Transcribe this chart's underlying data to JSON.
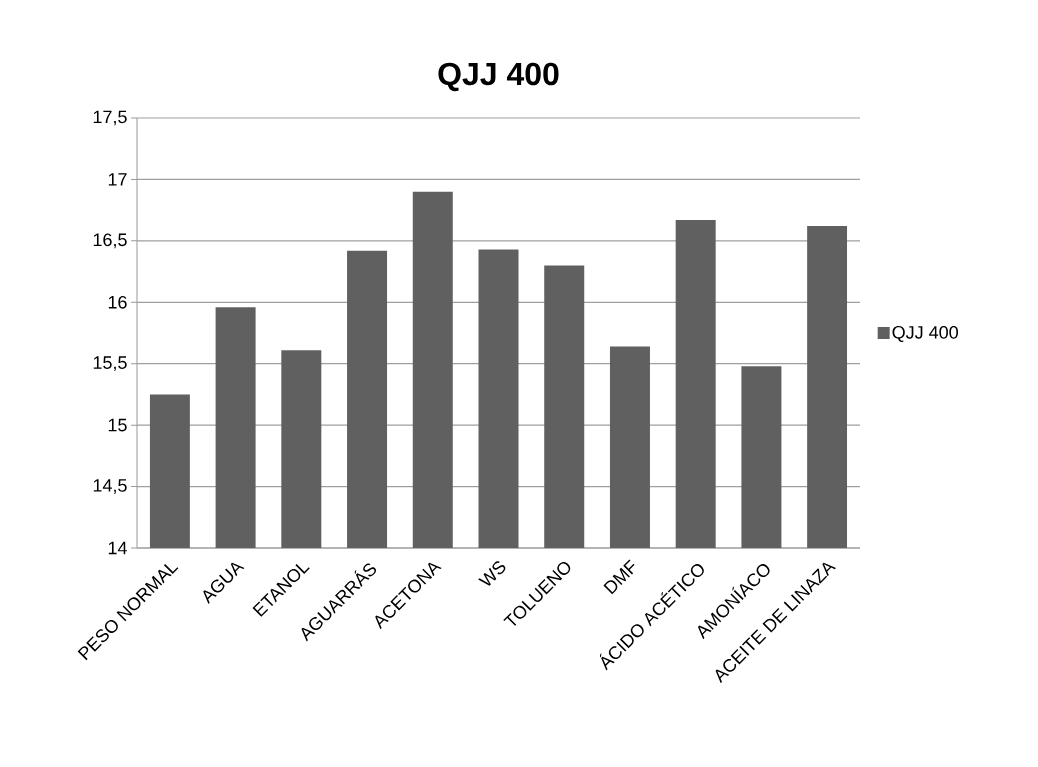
{
  "chart_data": {
    "type": "bar",
    "title": "QJJ 400",
    "categories": [
      "PESO NORMAL",
      "AGUA",
      "ETANOL",
      "AGUARRÁS",
      "ACETONA",
      "WS",
      "TOLUENO",
      "DMF",
      "ÁCIDO ACÉTICO",
      "AMONÍACO",
      "ACEITE DE LINAZA"
    ],
    "series": [
      {
        "name": "QJJ 400",
        "color": "#606060",
        "values": [
          15.25,
          15.96,
          15.61,
          16.42,
          16.9,
          16.43,
          16.3,
          15.64,
          16.67,
          15.48,
          16.62
        ]
      }
    ],
    "ylim": [
      14,
      17.5
    ],
    "yticks": [
      14,
      {
        "value": 14.5,
        "label": "14,5"
      },
      15,
      {
        "value": 15.5,
        "label": "15,5"
      },
      16,
      {
        "value": 16.5,
        "label": "16,5"
      },
      17,
      {
        "value": 17.5,
        "label": "17,5"
      }
    ],
    "grid": "y",
    "legend": "right"
  }
}
